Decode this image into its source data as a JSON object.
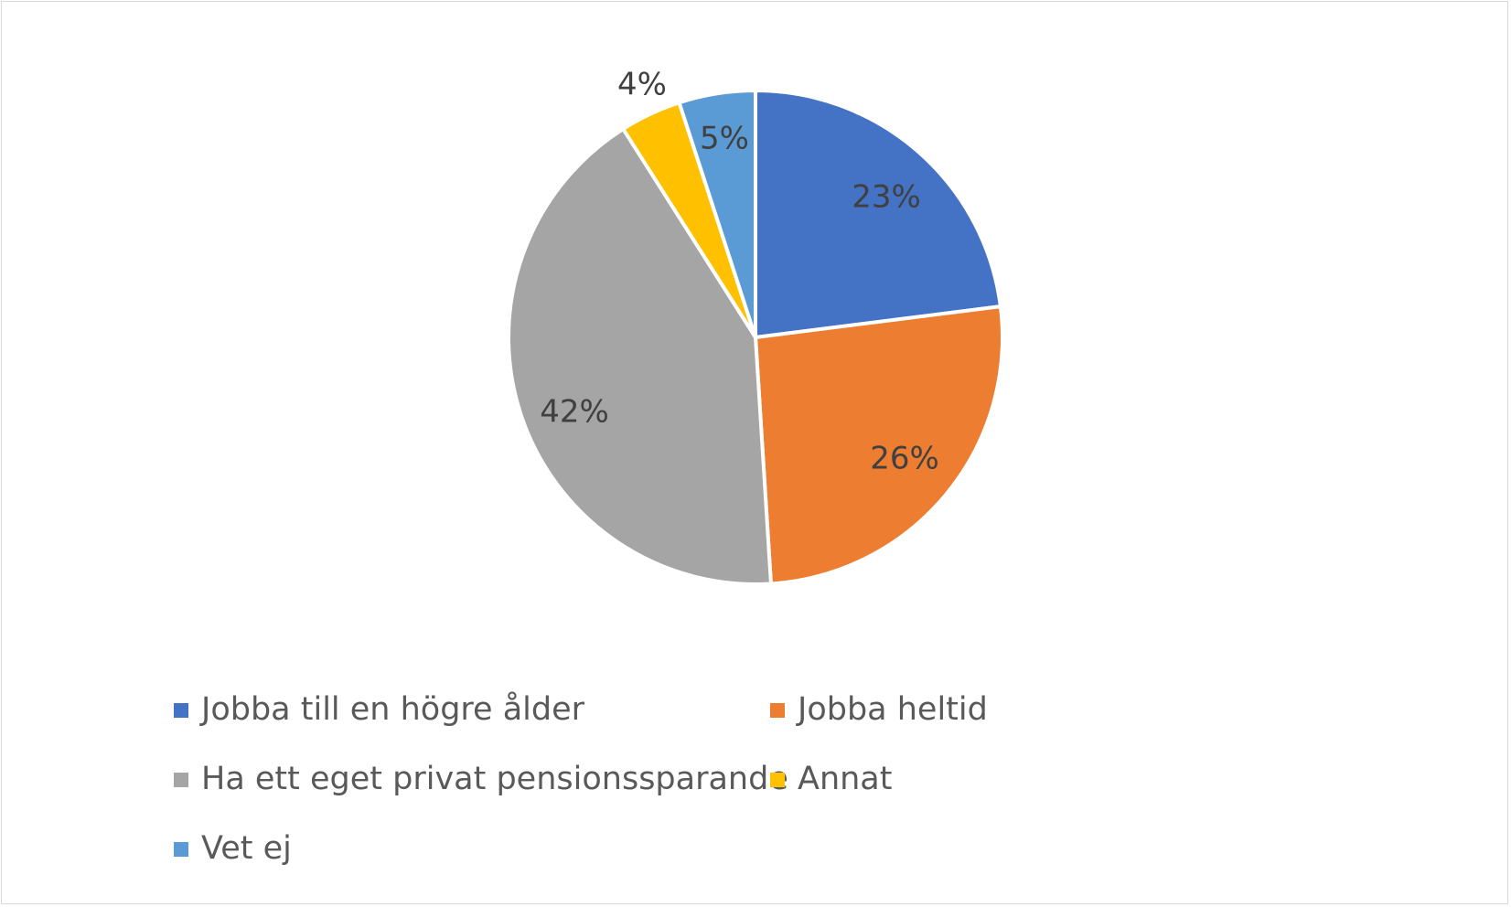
{
  "chart_data": {
    "type": "pie",
    "title": "",
    "categories": [
      "Jobba till en högre ålder",
      "Jobba heltid",
      "Ha ett eget privat pensionssparande",
      "Annat",
      "Vet ej"
    ],
    "values": [
      23,
      26,
      42,
      4,
      5
    ],
    "data_labels": [
      "23%",
      "26%",
      "42%",
      "4%",
      "5%"
    ],
    "colors": [
      "#4472c4",
      "#ed7d31",
      "#a5a5a5",
      "#ffc000",
      "#5b9bd5"
    ],
    "legend_position": "bottom"
  }
}
